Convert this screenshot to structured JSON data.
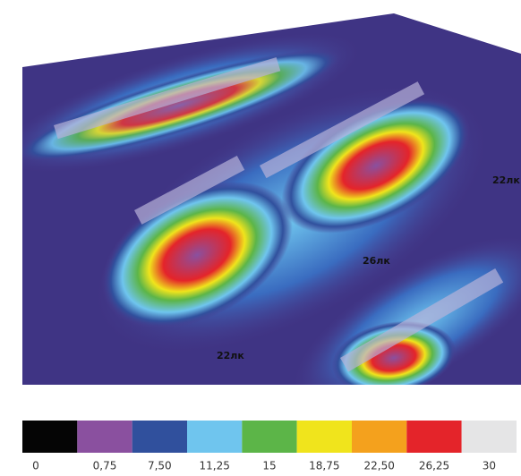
{
  "scene": {
    "labels": [
      "22лк",
      "26лк",
      "22лк"
    ]
  },
  "legend": {
    "items": [
      {
        "label": "0",
        "color": "#050505"
      },
      {
        "label": "0,75",
        "color": "#8a509f"
      },
      {
        "label": "7,50",
        "color": "#30509d"
      },
      {
        "label": "11,25",
        "color": "#6fc5ee"
      },
      {
        "label": "15",
        "color": "#5cb548"
      },
      {
        "label": "18,75",
        "color": "#f0e41c"
      },
      {
        "label": "22,50",
        "color": "#f4a11d"
      },
      {
        "label": "26,25",
        "color": "#e4242a"
      },
      {
        "label": "30",
        "color": "#e5e5e6"
      }
    ]
  }
}
